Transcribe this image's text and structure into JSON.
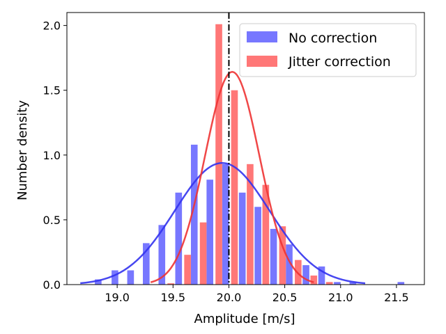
{
  "chart_data": {
    "type": "bar",
    "title": "",
    "xlabel": "Amplitude [m/s]",
    "ylabel": "Number density",
    "xlim": [
      18.55,
      21.75
    ],
    "ylim": [
      0.0,
      2.1
    ],
    "xticks": [
      "19.0",
      "19.5",
      "20.0",
      "20.5",
      "21.0",
      "21.5"
    ],
    "yticks": [
      "0.0",
      "0.5",
      "1.0",
      "1.5",
      "2.0"
    ],
    "legend_position": "top-right",
    "vertical_line": {
      "x": 20.0,
      "color": "#000000",
      "style": "dash-dot"
    },
    "series": [
      {
        "name": "No correction",
        "color": "#7777ff",
        "curve_color": "#3333ee",
        "bars": [
          {
            "x": 18.83,
            "value": 0.04
          },
          {
            "x": 18.98,
            "value": 0.11
          },
          {
            "x": 19.12,
            "value": 0.11
          },
          {
            "x": 19.26,
            "value": 0.32
          },
          {
            "x": 19.4,
            "value": 0.46
          },
          {
            "x": 19.55,
            "value": 0.71
          },
          {
            "x": 19.69,
            "value": 1.08
          },
          {
            "x": 19.83,
            "value": 0.81
          },
          {
            "x": 19.97,
            "value": 0.93
          },
          {
            "x": 20.12,
            "value": 0.71
          },
          {
            "x": 20.26,
            "value": 0.6
          },
          {
            "x": 20.4,
            "value": 0.43
          },
          {
            "x": 20.54,
            "value": 0.31
          },
          {
            "x": 20.69,
            "value": 0.15
          },
          {
            "x": 20.83,
            "value": 0.14
          },
          {
            "x": 20.97,
            "value": 0.02
          },
          {
            "x": 21.11,
            "value": 0.02
          },
          {
            "x": 21.54,
            "value": 0.02
          }
        ],
        "fit": {
          "mean": 19.94,
          "sigma": 0.425,
          "x_range": [
            18.67,
            21.22
          ]
        }
      },
      {
        "name": "Jitter correction",
        "color": "#ff7777",
        "curve_color": "#ee3333",
        "bars": [
          {
            "x": 19.48,
            "value": 0.01
          },
          {
            "x": 19.63,
            "value": 0.23
          },
          {
            "x": 19.77,
            "value": 0.48
          },
          {
            "x": 19.91,
            "value": 2.01
          },
          {
            "x": 20.05,
            "value": 1.5
          },
          {
            "x": 20.19,
            "value": 0.93
          },
          {
            "x": 20.33,
            "value": 0.77
          },
          {
            "x": 20.48,
            "value": 0.45
          },
          {
            "x": 20.62,
            "value": 0.19
          },
          {
            "x": 20.76,
            "value": 0.07
          },
          {
            "x": 20.9,
            "value": 0.02
          }
        ],
        "fit": {
          "mean": 20.03,
          "sigma": 0.243,
          "x_range": [
            19.3,
            20.76
          ]
        }
      }
    ]
  }
}
